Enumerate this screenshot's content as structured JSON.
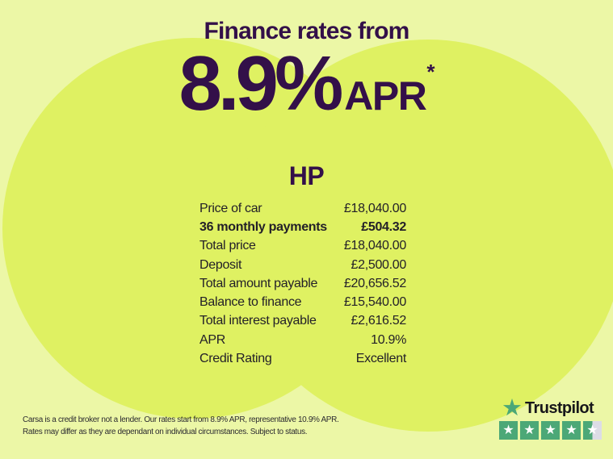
{
  "page": {
    "title_line": "Finance rates from",
    "rate_value": "8.9%",
    "rate_suffix": "APR",
    "rate_asterisk": "*"
  },
  "finance": {
    "product_label": "HP",
    "rows": [
      {
        "label": "Price of car",
        "value": "£18,040.00",
        "bold": false
      },
      {
        "label": "36 monthly payments",
        "value": "£504.32",
        "bold": true
      },
      {
        "label": "Total price",
        "value": "£18,040.00",
        "bold": false
      },
      {
        "label": "Deposit",
        "value": "£2,500.00",
        "bold": false
      },
      {
        "label": "Total amount payable",
        "value": "£20,656.52",
        "bold": false
      },
      {
        "label": "Balance to finance",
        "value": "£15,540.00",
        "bold": false
      },
      {
        "label": "Total interest payable",
        "value": "£2,616.52",
        "bold": false
      },
      {
        "label": "APR",
        "value": "10.9%",
        "bold": false
      },
      {
        "label": "Credit Rating",
        "value": "Excellent",
        "bold": false
      }
    ]
  },
  "footer": {
    "disclaimer_line1": "Carsa is a credit broker not a lender. Our rates start from 8.9% APR, representative 10.9% APR.",
    "disclaimer_line2": "Rates may differ as they are dependant on individual circumstances. Subject to status.",
    "trustpilot": {
      "brand": "Trustpilot",
      "rating_stars": 4.5,
      "star_glyph": "★"
    }
  },
  "colors": {
    "background_light": "#ecf7a6",
    "background_circle": "#dff162",
    "heading_purple": "#331049",
    "table_text": "#232028",
    "disclaimer_text": "#2c2b31",
    "trustpilot_green": "#4ca877",
    "trustpilot_gray": "#dcdce6",
    "trustpilot_text": "#17171b"
  }
}
